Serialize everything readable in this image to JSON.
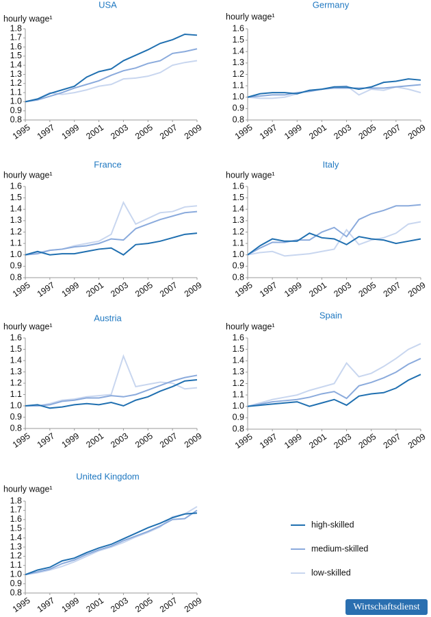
{
  "chart_data": [
    {
      "type": "line",
      "title": "USA",
      "ylabel": "hourly wage¹",
      "x": [
        1995,
        1996,
        1997,
        1998,
        1999,
        2000,
        2001,
        2002,
        2003,
        2004,
        2005,
        2006,
        2007,
        2008,
        2009
      ],
      "xlim": [
        1995,
        2009
      ],
      "xticks": [
        1995,
        1997,
        1999,
        2001,
        2003,
        2005,
        2007,
        2009
      ],
      "ylim": [
        0.8,
        1.8
      ],
      "yticks": [
        0.8,
        0.9,
        {
          "value": 1,
          "label": "1.0"
        },
        1.1,
        1.2,
        1.3,
        1.4,
        1.5,
        1.6,
        1.7,
        1.8
      ],
      "series": [
        {
          "name": "high-skilled",
          "color": "#1f6fb0",
          "values": [
            1.0,
            1.03,
            1.09,
            1.13,
            1.17,
            1.27,
            1.33,
            1.36,
            1.45,
            1.51,
            1.57,
            1.64,
            1.68,
            1.74,
            1.73
          ]
        },
        {
          "name": "medium-skilled",
          "color": "#8aaadc",
          "values": [
            1.0,
            1.02,
            1.06,
            1.1,
            1.15,
            1.19,
            1.23,
            1.29,
            1.34,
            1.37,
            1.42,
            1.45,
            1.53,
            1.55,
            1.58
          ]
        },
        {
          "name": "low-skilled",
          "color": "#c8d6ef",
          "values": [
            1.0,
            1.03,
            1.1,
            1.08,
            1.1,
            1.13,
            1.17,
            1.19,
            1.25,
            1.26,
            1.28,
            1.32,
            1.4,
            1.43,
            1.45
          ]
        }
      ]
    },
    {
      "type": "line",
      "title": "Germany",
      "ylabel": "hourly wage¹",
      "x": [
        1995,
        1996,
        1997,
        1998,
        1999,
        2000,
        2001,
        2002,
        2003,
        2004,
        2005,
        2006,
        2007,
        2008,
        2009
      ],
      "xlim": [
        1995,
        2009
      ],
      "xticks": [
        1995,
        1997,
        1999,
        2001,
        2003,
        2005,
        2007,
        2009
      ],
      "ylim": [
        0.8,
        1.6
      ],
      "yticks": [
        0.8,
        0.9,
        {
          "value": 1,
          "label": "1.0"
        },
        1.1,
        1.2,
        1.3,
        1.4,
        1.5,
        1.6
      ],
      "series": [
        {
          "name": "high-skilled",
          "color": "#1f6fb0",
          "values": [
            1.0,
            1.03,
            1.04,
            1.04,
            1.03,
            1.06,
            1.07,
            1.09,
            1.09,
            1.07,
            1.09,
            1.13,
            1.14,
            1.16,
            1.15
          ]
        },
        {
          "name": "medium-skilled",
          "color": "#8aaadc",
          "values": [
            1.0,
            1.01,
            1.02,
            1.02,
            1.04,
            1.05,
            1.07,
            1.08,
            1.08,
            1.08,
            1.08,
            1.08,
            1.09,
            1.1,
            1.11
          ]
        },
        {
          "name": "low-skilled",
          "color": "#c8d6ef",
          "values": [
            1.0,
            0.99,
            0.99,
            1.0,
            1.03,
            1.06,
            1.07,
            1.09,
            1.1,
            1.02,
            1.07,
            1.06,
            1.09,
            1.07,
            1.04
          ]
        }
      ]
    },
    {
      "type": "line",
      "title": "France",
      "ylabel": "hourly wage¹",
      "x": [
        1995,
        1996,
        1997,
        1998,
        1999,
        2000,
        2001,
        2002,
        2003,
        2004,
        2005,
        2006,
        2007,
        2008,
        2009
      ],
      "xlim": [
        1995,
        2009
      ],
      "xticks": [
        1995,
        1997,
        1999,
        2001,
        2003,
        2005,
        2007,
        2009
      ],
      "ylim": [
        0.8,
        1.6
      ],
      "yticks": [
        0.8,
        0.9,
        {
          "value": 1,
          "label": "1.0"
        },
        1.1,
        1.2,
        1.3,
        1.4,
        1.5,
        1.6
      ],
      "series": [
        {
          "name": "high-skilled",
          "color": "#1f6fb0",
          "values": [
            1.0,
            1.03,
            1.0,
            1.01,
            1.01,
            1.03,
            1.05,
            1.06,
            1.0,
            1.09,
            1.1,
            1.12,
            1.15,
            1.18,
            1.19
          ]
        },
        {
          "name": "medium-skilled",
          "color": "#8aaadc",
          "values": [
            1.0,
            1.01,
            1.04,
            1.05,
            1.07,
            1.08,
            1.1,
            1.14,
            1.13,
            1.23,
            1.27,
            1.31,
            1.34,
            1.37,
            1.38
          ]
        },
        {
          "name": "low-skilled",
          "color": "#c8d6ef",
          "values": [
            1.0,
            1.02,
            1.04,
            1.05,
            1.08,
            1.1,
            1.12,
            1.18,
            1.46,
            1.27,
            1.32,
            1.37,
            1.38,
            1.42,
            1.43
          ]
        }
      ]
    },
    {
      "type": "line",
      "title": "Italy",
      "ylabel": "hourly wage¹",
      "x": [
        1995,
        1996,
        1997,
        1998,
        1999,
        2000,
        2001,
        2002,
        2003,
        2004,
        2005,
        2006,
        2007,
        2008,
        2009
      ],
      "xlim": [
        1995,
        2009
      ],
      "xticks": [
        1995,
        1997,
        1999,
        2001,
        2003,
        2005,
        2007,
        2009
      ],
      "ylim": [
        0.8,
        1.6
      ],
      "yticks": [
        0.8,
        0.9,
        {
          "value": 1,
          "label": "1.0"
        },
        1.1,
        1.2,
        1.3,
        1.4,
        1.5,
        1.6
      ],
      "series": [
        {
          "name": "high-skilled",
          "color": "#1f6fb0",
          "values": [
            1.0,
            1.08,
            1.14,
            1.12,
            1.12,
            1.19,
            1.15,
            1.14,
            1.09,
            1.16,
            1.14,
            1.13,
            1.1,
            1.12,
            1.14
          ]
        },
        {
          "name": "medium-skilled",
          "color": "#8aaadc",
          "values": [
            1.0,
            1.06,
            1.11,
            1.11,
            1.13,
            1.13,
            1.2,
            1.24,
            1.16,
            1.31,
            1.36,
            1.39,
            1.43,
            1.43,
            1.44
          ]
        },
        {
          "name": "low-skilled",
          "color": "#c8d6ef",
          "values": [
            1.0,
            1.02,
            1.03,
            0.99,
            1.0,
            1.01,
            1.03,
            1.05,
            1.22,
            1.09,
            1.13,
            1.15,
            1.19,
            1.27,
            1.29
          ]
        }
      ]
    },
    {
      "type": "line",
      "title": "Austria",
      "ylabel": "hourly wage¹",
      "x": [
        1995,
        1996,
        1997,
        1998,
        1999,
        2000,
        2001,
        2002,
        2003,
        2004,
        2005,
        2006,
        2007,
        2008,
        2009
      ],
      "xlim": [
        1995,
        2009
      ],
      "xticks": [
        1995,
        1997,
        1999,
        2001,
        2003,
        2005,
        2007,
        2009
      ],
      "ylim": [
        0.8,
        1.6
      ],
      "yticks": [
        0.8,
        0.9,
        {
          "value": 1,
          "label": "1.0"
        },
        1.1,
        1.2,
        1.3,
        1.4,
        1.5,
        1.6
      ],
      "series": [
        {
          "name": "high-skilled",
          "color": "#1f6fb0",
          "values": [
            1.0,
            1.01,
            0.98,
            0.99,
            1.01,
            1.02,
            1.01,
            1.03,
            1.0,
            1.05,
            1.08,
            1.13,
            1.17,
            1.22,
            1.23
          ]
        },
        {
          "name": "medium-skilled",
          "color": "#8aaadc",
          "values": [
            1.0,
            1.0,
            1.01,
            1.04,
            1.05,
            1.07,
            1.07,
            1.09,
            1.08,
            1.1,
            1.14,
            1.18,
            1.22,
            1.25,
            1.27
          ]
        },
        {
          "name": "low-skilled",
          "color": "#c8d6ef",
          "values": [
            1.0,
            1.0,
            1.02,
            1.05,
            1.06,
            1.08,
            1.09,
            1.1,
            1.44,
            1.17,
            1.19,
            1.21,
            1.2,
            1.15,
            1.16
          ]
        }
      ]
    },
    {
      "type": "line",
      "title": "Spain",
      "ylabel": "hourly wage¹",
      "x": [
        1995,
        1996,
        1997,
        1998,
        1999,
        2000,
        2001,
        2002,
        2003,
        2004,
        2005,
        2006,
        2007,
        2008,
        2009
      ],
      "xlim": [
        1995,
        2009
      ],
      "xticks": [
        1995,
        1997,
        1999,
        2001,
        2003,
        2005,
        2007,
        2009
      ],
      "ylim": [
        0.8,
        1.6
      ],
      "yticks": [
        0.8,
        0.9,
        {
          "value": 1,
          "label": "1.0"
        },
        1.1,
        1.2,
        1.3,
        1.4,
        1.5,
        1.6
      ],
      "series": [
        {
          "name": "high-skilled",
          "color": "#1f6fb0",
          "values": [
            1.0,
            1.01,
            1.02,
            1.03,
            1.04,
            1.0,
            1.03,
            1.06,
            1.01,
            1.09,
            1.11,
            1.12,
            1.16,
            1.23,
            1.28
          ]
        },
        {
          "name": "medium-skilled",
          "color": "#8aaadc",
          "values": [
            1.0,
            1.02,
            1.04,
            1.05,
            1.06,
            1.08,
            1.11,
            1.13,
            1.07,
            1.18,
            1.21,
            1.25,
            1.3,
            1.37,
            1.42
          ]
        },
        {
          "name": "low-skilled",
          "color": "#c8d6ef",
          "values": [
            1.0,
            1.03,
            1.06,
            1.08,
            1.1,
            1.14,
            1.17,
            1.2,
            1.38,
            1.26,
            1.29,
            1.35,
            1.42,
            1.5,
            1.55
          ]
        }
      ]
    },
    {
      "type": "line",
      "title": "United Kingdom",
      "ylabel": "hourly wage¹",
      "x": [
        1995,
        1996,
        1997,
        1998,
        1999,
        2000,
        2001,
        2002,
        2003,
        2004,
        2005,
        2006,
        2007,
        2008,
        2009
      ],
      "xlim": [
        1995,
        2009
      ],
      "xticks": [
        1995,
        1997,
        1999,
        2001,
        2003,
        2005,
        2007,
        2009
      ],
      "ylim": [
        0.8,
        1.8
      ],
      "yticks": [
        0.8,
        0.9,
        {
          "value": 1,
          "label": "1.0"
        },
        1.1,
        1.2,
        1.3,
        1.4,
        1.5,
        1.6,
        1.7,
        1.8
      ],
      "series": [
        {
          "name": "high-skilled",
          "color": "#1f6fb0",
          "values": [
            1.0,
            1.05,
            1.08,
            1.15,
            1.18,
            1.24,
            1.29,
            1.33,
            1.39,
            1.45,
            1.51,
            1.56,
            1.62,
            1.66,
            1.67
          ]
        },
        {
          "name": "medium-skilled",
          "color": "#8aaadc",
          "values": [
            1.0,
            1.03,
            1.06,
            1.12,
            1.16,
            1.22,
            1.27,
            1.31,
            1.37,
            1.42,
            1.47,
            1.53,
            1.6,
            1.61,
            1.7
          ]
        },
        {
          "name": "low-skilled",
          "color": "#c8d6ef",
          "values": [
            1.0,
            1.02,
            1.05,
            1.09,
            1.14,
            1.2,
            1.26,
            1.3,
            1.35,
            1.41,
            1.46,
            1.52,
            1.63,
            1.66,
            1.74
          ]
        }
      ]
    }
  ],
  "logo": "Wirtschaftsdienst"
}
